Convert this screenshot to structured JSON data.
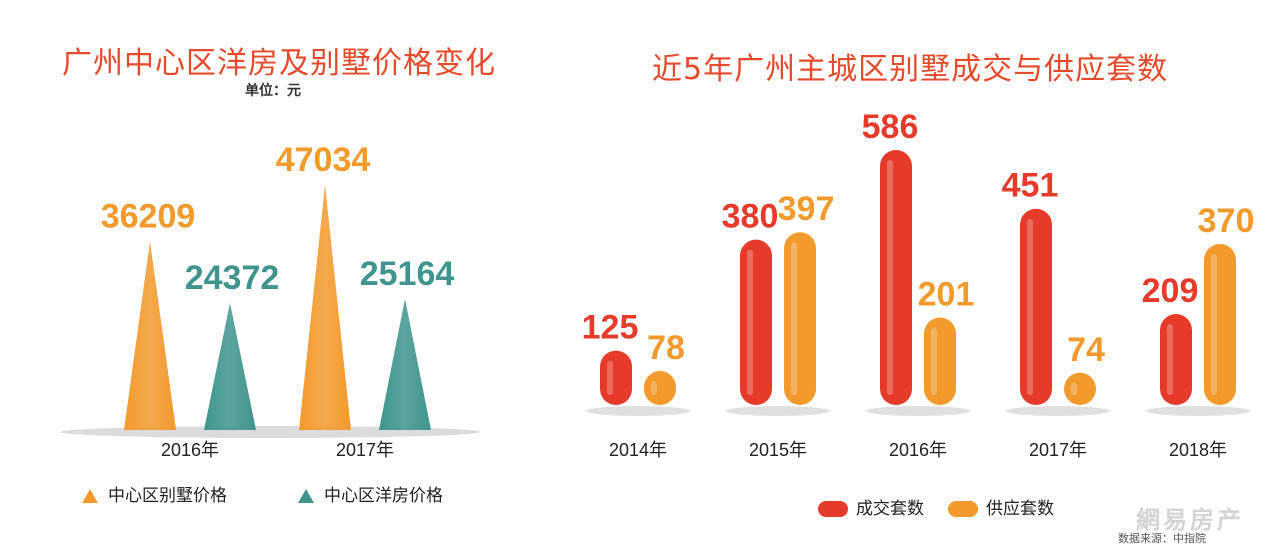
{
  "colors": {
    "red": "#e63a2a",
    "orange": "#f39a2d",
    "teal": "#3f958d",
    "title": "#e64a2c",
    "text": "#222222"
  },
  "left": {
    "title": "广州中心区洋房及别墅价格变化",
    "unit": "单位：元",
    "legend": [
      {
        "label": "中心区别墅价格",
        "color": "#f39a2d",
        "icon": "orange-triangle-icon"
      },
      {
        "label": "中心区洋房价格",
        "color": "#3f958d",
        "icon": "teal-triangle-icon"
      }
    ]
  },
  "right": {
    "title": "近5年广州主城区别墅成交与供应套数",
    "legend": [
      {
        "label": "成交套数",
        "color": "#e63a2a",
        "icon": "red-pill-icon"
      },
      {
        "label": "供应套数",
        "color": "#f39a2d",
        "icon": "orange-pill-icon"
      }
    ]
  },
  "watermark": {
    "logo": "網易房产",
    "source": "数据来源：中指院"
  },
  "chart_data": [
    {
      "type": "bar",
      "title": "广州中心区洋房及别墅价格变化",
      "unit": "单位：元",
      "categories": [
        "2016年",
        "2017年"
      ],
      "series": [
        {
          "name": "中心区别墅价格",
          "values": [
            36209,
            47034
          ],
          "labels": [
            "36209",
            "47034"
          ],
          "color": "#f39a2d"
        },
        {
          "name": "中心区洋房价格",
          "values": [
            24372,
            25164
          ],
          "labels": [
            "24372",
            "25164"
          ],
          "color": "#3f958d"
        }
      ],
      "legend": "bottom"
    },
    {
      "type": "bar",
      "title": "近5年广州主城区别墅成交与供应套数",
      "categories": [
        "2014年",
        "2015年",
        "2016年",
        "2017年",
        "2018年"
      ],
      "series": [
        {
          "name": "成交套数",
          "values": [
            125,
            380,
            586,
            451,
            209
          ],
          "labels": [
            "125",
            "380",
            "586",
            "451",
            "209"
          ],
          "color": "#e63a2a"
        },
        {
          "name": "供应套数",
          "values": [
            78,
            397,
            201,
            74,
            370
          ],
          "labels": [
            "78",
            "397",
            "201",
            "74",
            "370"
          ],
          "color": "#f39a2d"
        }
      ],
      "legend": "bottom"
    }
  ]
}
